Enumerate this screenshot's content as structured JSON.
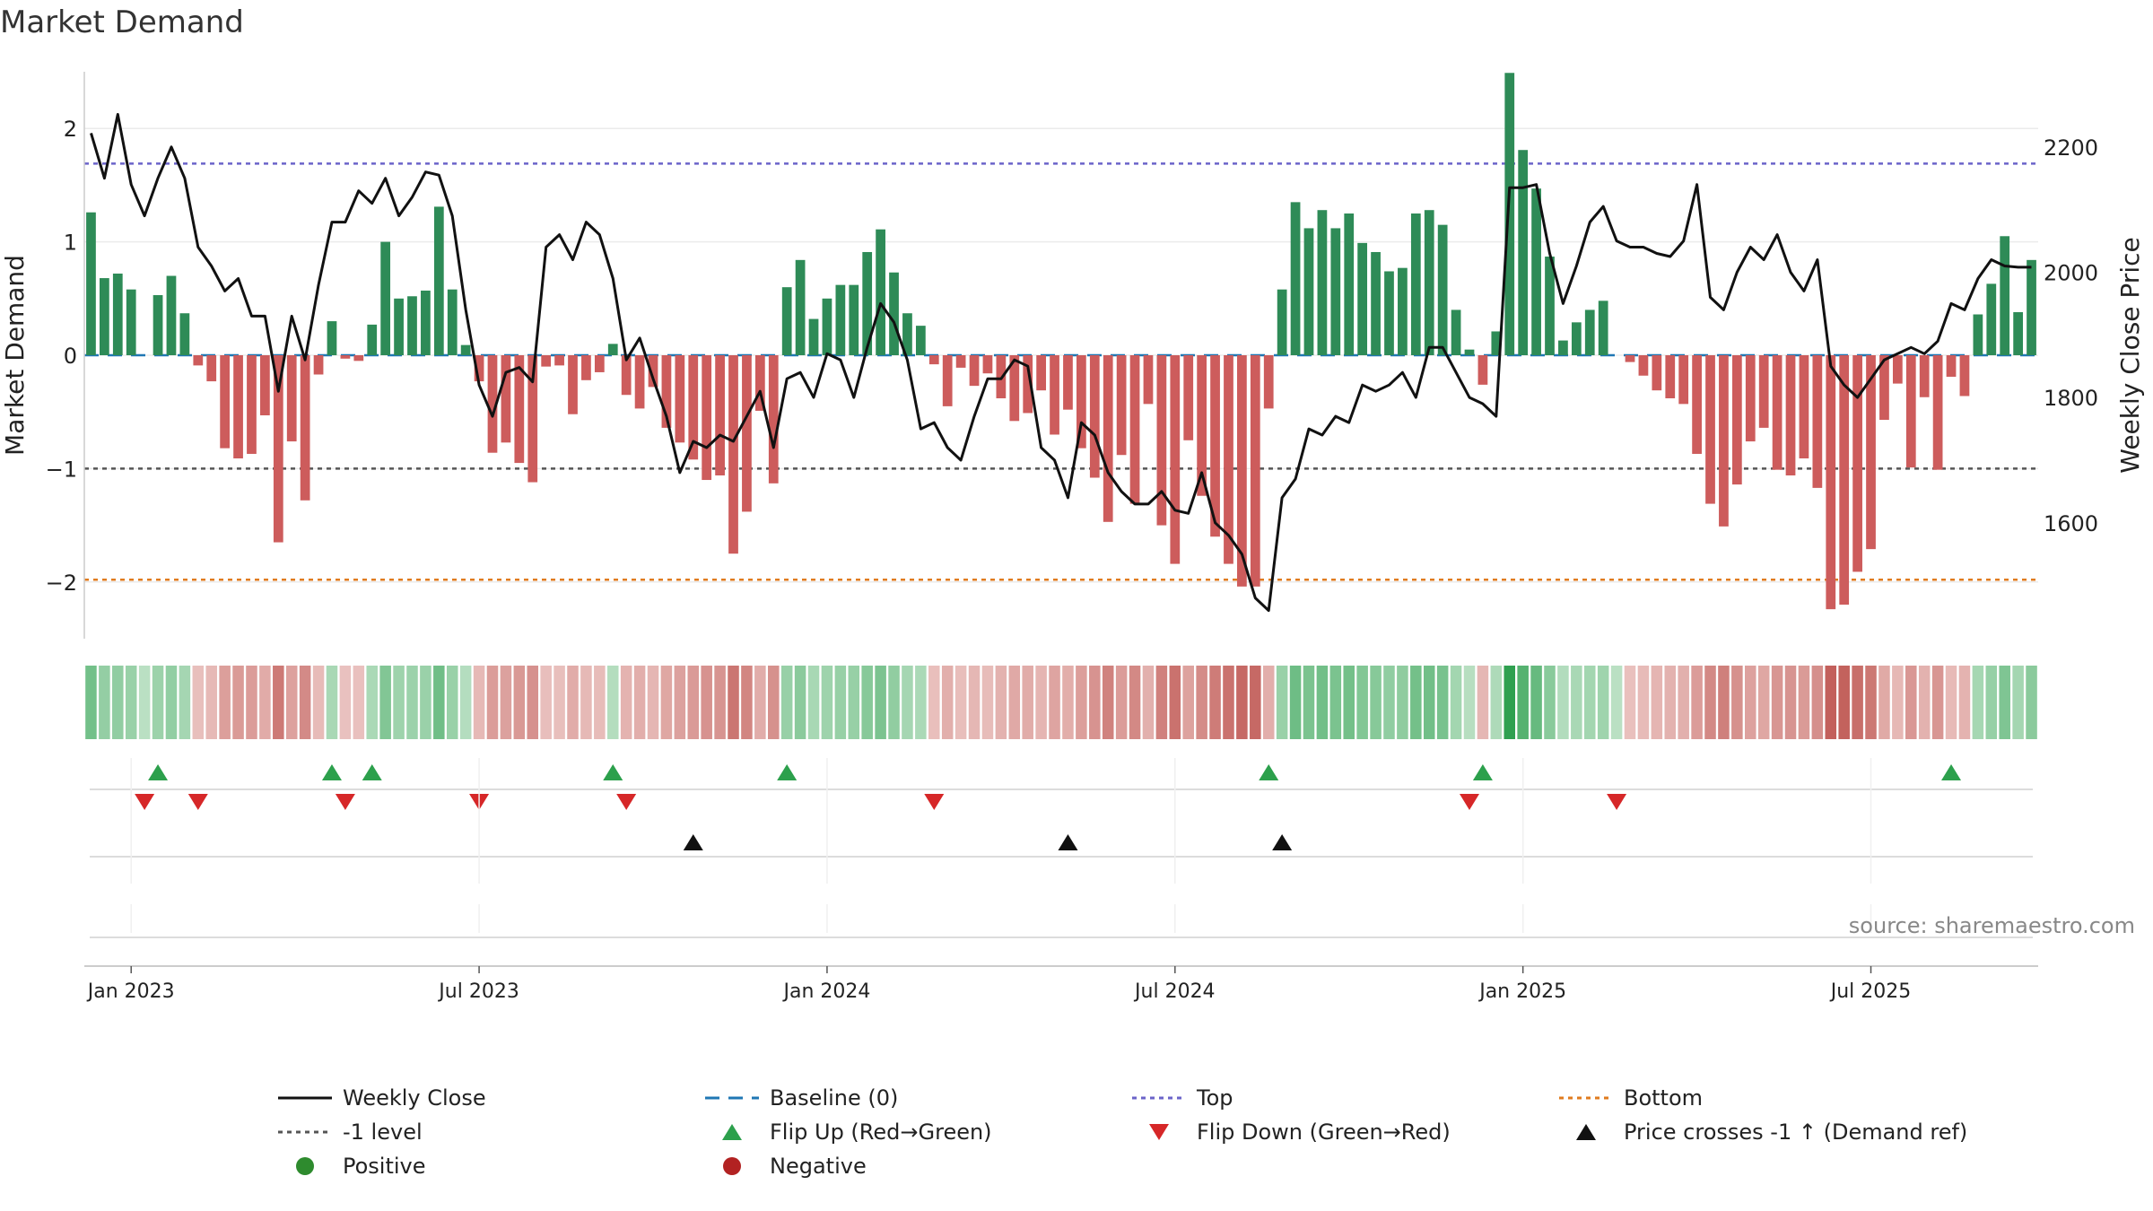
{
  "chart_data": {
    "type": "bar+line",
    "title": "Market Demand",
    "ylabel_left": "Market Demand",
    "ylabel_right": "Weekly Close Price",
    "source": "source: sharemaestro.com",
    "x_ticks": [
      "Jan 2023",
      "Jul 2023",
      "Jan 2024",
      "Jul 2024",
      "Jan 2025",
      "Jul 2025"
    ],
    "x_tick_weeks": [
      0,
      26,
      52,
      78,
      104,
      130
    ],
    "first_week_offset": -3,
    "ylim_left": [
      -2.5,
      2.5
    ],
    "yticks_left": [
      2,
      1,
      0,
      -1,
      -2
    ],
    "ytick_labels_left": [
      "2",
      "1",
      "0",
      "−1",
      "−2"
    ],
    "ylim_right": [
      1415,
      2320
    ],
    "yticks_right": [
      2200,
      2000,
      1800,
      1600
    ],
    "ytick_labels_right": [
      "2200",
      "2000",
      "1800",
      "1600"
    ],
    "reference_lines": [
      {
        "name": "Top",
        "value": 1.69,
        "color": "#6b63c9"
      },
      {
        "name": "-1 level",
        "value": -1.0,
        "color": "#555555"
      },
      {
        "name": "Bottom",
        "value": -1.98,
        "color": "#e07b1e"
      },
      {
        "name": "Baseline (0)",
        "value": 0,
        "color": "#1f77b4"
      }
    ],
    "demand": [
      1.26,
      0.68,
      0.72,
      0.58,
      0,
      0.53,
      0.7,
      0.37,
      -0.09,
      -0.23,
      -0.82,
      -0.91,
      -0.87,
      -0.53,
      -1.65,
      -0.76,
      -1.28,
      -0.17,
      0.3,
      -0.03,
      -0.05,
      0.27,
      1.0,
      0.5,
      0.52,
      0.57,
      1.31,
      0.58,
      0.09,
      -0.23,
      -0.86,
      -0.77,
      -0.95,
      -1.12,
      -0.1,
      -0.09,
      -0.52,
      -0.22,
      -0.15,
      0.1,
      -0.35,
      -0.47,
      -0.28,
      -0.64,
      -0.77,
      -0.92,
      -1.1,
      -1.06,
      -1.75,
      -1.38,
      -0.49,
      -1.13,
      0.6,
      0.84,
      0.32,
      0.5,
      0.62,
      0.62,
      0.91,
      1.11,
      0.73,
      0.37,
      0.26,
      -0.08,
      -0.45,
      -0.11,
      -0.27,
      -0.16,
      -0.38,
      -0.58,
      -0.51,
      -0.31,
      -0.7,
      -0.48,
      -0.82,
      -1.08,
      -1.47,
      -0.88,
      -1.31,
      -0.43,
      -1.5,
      -1.84,
      -0.75,
      -1.24,
      -1.6,
      -1.84,
      -2.04,
      -2.04,
      -0.47,
      0.58,
      1.35,
      1.12,
      1.28,
      1.12,
      1.25,
      0.99,
      0.91,
      0.74,
      0.77,
      1.25,
      1.28,
      1.15,
      0.4,
      0.05,
      -0.26,
      0.21,
      2.49,
      1.81,
      1.47,
      0.87,
      0.13,
      0.29,
      0.4,
      0.48,
      0,
      -0.06,
      -0.18,
      -0.31,
      -0.38,
      -0.43,
      -0.87,
      -1.31,
      -1.51,
      -1.14,
      -0.76,
      -0.64,
      -1.01,
      -1.06,
      -0.91,
      -1.17,
      -2.24,
      -2.2,
      -1.91,
      -1.71,
      -0.57,
      -0.25,
      -0.99,
      -0.37,
      -1.01,
      -0.19,
      -0.36,
      0.36,
      0.63,
      1.05,
      0.38,
      0.84
    ],
    "close": [
      2222,
      2150,
      2252,
      2140,
      2090,
      2150,
      2200,
      2150,
      2040,
      2010,
      1970,
      1990,
      1930,
      1930,
      1810,
      1930,
      1860,
      1980,
      2080,
      2080,
      2130,
      2110,
      2150,
      2090,
      2120,
      2160,
      2155,
      2090,
      1940,
      1820,
      1770,
      1840,
      1848,
      1825,
      2040,
      2060,
      2020,
      2080,
      2060,
      1990,
      1860,
      1895,
      1830,
      1770,
      1680,
      1730,
      1720,
      1740,
      1730,
      1770,
      1810,
      1720,
      1830,
      1840,
      1800,
      1870,
      1860,
      1800,
      1880,
      1950,
      1920,
      1860,
      1750,
      1760,
      1720,
      1700,
      1770,
      1830,
      1830,
      1860,
      1850,
      1720,
      1700,
      1640,
      1760,
      1740,
      1680,
      1650,
      1630,
      1630,
      1650,
      1620,
      1615,
      1680,
      1600,
      1580,
      1550,
      1480,
      1460,
      1640,
      1670,
      1750,
      1740,
      1770,
      1760,
      1820,
      1810,
      1820,
      1840,
      1800,
      1880,
      1880,
      1840,
      1800,
      1790,
      1770,
      2135,
      2135,
      2140,
      2030,
      1950,
      2010,
      2080,
      2105,
      2050,
      2040,
      2040,
      2030,
      2025,
      2050,
      2140,
      1960,
      1940,
      2000,
      2040,
      2020,
      2060,
      2000,
      1970,
      2020,
      1850,
      1820,
      1800,
      1830,
      1860,
      1870,
      1880,
      1870,
      1890,
      1950,
      1940,
      1990,
      2020,
      2010,
      2008,
      2008
    ],
    "flip_up_weeks": [
      2,
      15,
      18,
      36,
      49,
      85,
      101,
      136
    ],
    "flip_down_weeks": [
      1,
      5,
      16,
      26,
      37,
      60,
      100,
      111
    ],
    "price_cross_weeks": [
      42,
      70,
      86
    ],
    "legend": [
      {
        "label": "Weekly Close",
        "symbol": "line-solid",
        "color": "#111111"
      },
      {
        "label": "Baseline (0)",
        "symbol": "line-dash",
        "color": "#1f77b4"
      },
      {
        "label": "Top",
        "symbol": "line-dot",
        "color": "#6b63c9"
      },
      {
        "label": "Bottom",
        "symbol": "line-dot",
        "color": "#e07b1e"
      },
      {
        "label": "-1 level",
        "symbol": "line-dot",
        "color": "#555555"
      },
      {
        "label": "Flip Up (Red→Green)",
        "symbol": "triangle-up",
        "color": "#2ca04c"
      },
      {
        "label": "Flip Down (Green→Red)",
        "symbol": "triangle-down",
        "color": "#d62728"
      },
      {
        "label": "Price crosses -1 ↑ (Demand ref)",
        "symbol": "triangle-up",
        "color": "#111111"
      },
      {
        "label": "Positive",
        "symbol": "circle",
        "color": "#2e8b2e"
      },
      {
        "label": "Negative",
        "symbol": "circle",
        "color": "#b22222"
      }
    ],
    "colors": {
      "positive_bar": "#2e8b57",
      "negative_bar": "#cd5c5c",
      "price_line": "#111111"
    }
  }
}
